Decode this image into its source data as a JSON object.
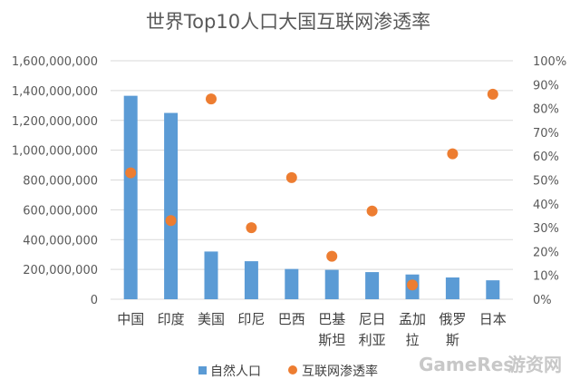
{
  "chart_data": {
    "type": "bar",
    "title": "世界Top10人口大国互联网渗透率",
    "categories": [
      "中国",
      "印度",
      "美国",
      "印尼",
      "巴西",
      "巴基斯坦",
      "尼日利亚",
      "孟加拉",
      "俄罗斯",
      "日本"
    ],
    "category_lines": [
      [
        "中国"
      ],
      [
        "印度"
      ],
      [
        "美国"
      ],
      [
        "印尼"
      ],
      [
        "巴西"
      ],
      [
        "巴基",
        "斯坦"
      ],
      [
        "尼日",
        "利亚"
      ],
      [
        "孟加",
        "拉"
      ],
      [
        "俄罗",
        "斯"
      ],
      [
        "日本"
      ]
    ],
    "series": [
      {
        "name": "自然人口",
        "type": "bar",
        "axis": "left",
        "color": "#5b9bd5",
        "values": [
          1365000000,
          1250000000,
          320000000,
          255000000,
          203000000,
          197000000,
          182000000,
          166000000,
          146000000,
          127000000
        ]
      },
      {
        "name": "互联网渗透率",
        "type": "scatter",
        "axis": "right",
        "color": "#ed7d31",
        "values": [
          0.53,
          0.33,
          0.84,
          0.3,
          0.51,
          0.18,
          0.37,
          0.06,
          0.61,
          0.86
        ]
      }
    ],
    "y_left": {
      "range": [
        0,
        1600000000
      ],
      "ticks": [
        0,
        200000000,
        400000000,
        600000000,
        800000000,
        1000000000,
        1200000000,
        1400000000,
        1600000000
      ],
      "tick_labels": [
        "0",
        "200,000,000",
        "400,000,000",
        "600,000,000",
        "800,000,000",
        "1,000,000,000",
        "1,200,000,000",
        "1,400,000,000",
        "1,600,000,000"
      ]
    },
    "y_right": {
      "range": [
        0,
        1
      ],
      "ticks": [
        0,
        0.1,
        0.2,
        0.3,
        0.4,
        0.5,
        0.6,
        0.7,
        0.8,
        0.9,
        1.0
      ],
      "tick_labels": [
        "0%",
        "10%",
        "20%",
        "30%",
        "40%",
        "50%",
        "60%",
        "70%",
        "80%",
        "90%",
        "100%"
      ]
    },
    "grid": true,
    "legend_position": "bottom"
  },
  "watermark": {
    "text_latin": "GameRes",
    "text_cn": "游资网"
  }
}
